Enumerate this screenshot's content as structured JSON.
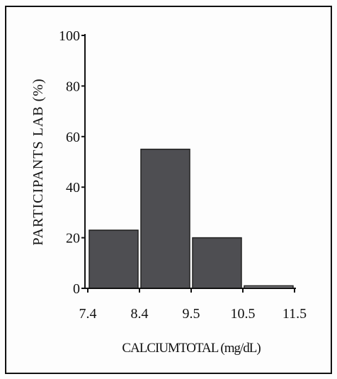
{
  "chart_data": {
    "type": "bar",
    "xlabel": "CALCIUMTOTAL (mg/dL)",
    "ylabel": "PARTICIPANTS LAB (%)",
    "ylim": [
      0,
      100
    ],
    "yticks": [
      "0",
      "20",
      "40",
      "60",
      "80",
      "100"
    ],
    "xticks": [
      "7.4",
      "8.4",
      "9.5",
      "10.5",
      "11.5"
    ],
    "bins": [
      {
        "from": "7.4",
        "to": "8.4",
        "value": 23
      },
      {
        "from": "8.4",
        "to": "9.5",
        "value": 55
      },
      {
        "from": "9.5",
        "to": "10.5",
        "value": 20
      },
      {
        "from": "10.5",
        "to": "11.5",
        "value": 1
      }
    ],
    "bar_color": "#4e4e52",
    "last_bar_color": "#7a7a7e",
    "grid": false,
    "legend": "none"
  }
}
